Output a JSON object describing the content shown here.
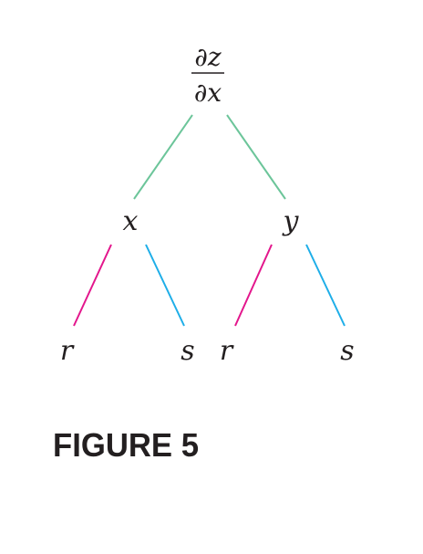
{
  "diagram": {
    "root": {
      "numerator": "∂z",
      "denominator": "∂x"
    },
    "level1": {
      "left": "x",
      "right": "y"
    },
    "level2": {
      "x_left": "r",
      "x_right": "s",
      "y_left": "r",
      "y_right": "s"
    },
    "colors": {
      "root_edges": "#6cc59a",
      "r_edges": "#e3168c",
      "s_edges": "#1eaee8",
      "text": "#231f20"
    }
  },
  "caption": "FIGURE 5"
}
